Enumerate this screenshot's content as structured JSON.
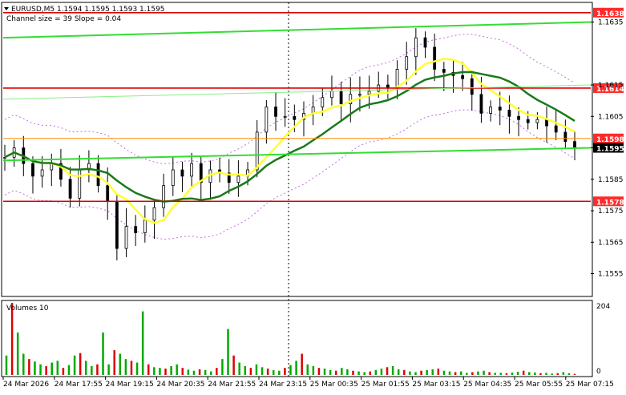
{
  "header": {
    "symbol_line": "EURUSD,M5  1.1594 1.1595 1.1593 1.1595",
    "channel_line": "Channel size = 39 Slope = 0.04"
  },
  "volume_panel": {
    "label": "Volumes 10",
    "max_label": "204",
    "zero_label": "0"
  },
  "colors": {
    "background": "#ffffff",
    "bull_candle": "#000000",
    "volume_up": "#00aa00",
    "volume_down": "#dd0000",
    "resistance_line": "#dd0000",
    "mid_line": "#ff8c00",
    "channel_line": "#33dd33",
    "ma_fast": "#ffff33",
    "ma_slow": "#1a7a1a",
    "envelope": "#c070e0",
    "label_red_bg": "#ff2a2a",
    "label_current_bg": "#000000",
    "grid": "#000000"
  },
  "chart_data": {
    "type": "line",
    "title": "EURUSD,M5",
    "timeframe": "M5",
    "ohlc_header": {
      "open": 1.1594,
      "high": 1.1595,
      "low": 1.1593,
      "close": 1.1595
    },
    "ylim": [
      1.1548,
      1.1641
    ],
    "y_ticks": [
      "1.1635",
      "1.1615",
      "1.1605",
      "1.1595",
      "1.1585",
      "1.1575",
      "1.1565",
      "1.1555"
    ],
    "x_tick_labels": [
      "24 Mar 2026",
      "24 Mar 17:55",
      "24 Mar 19:15",
      "24 Mar 20:35",
      "24 Mar 21:55",
      "24 Mar 23:15",
      "25 Mar 00:35",
      "25 Mar 01:55",
      "25 Mar 03:15",
      "25 Mar 04:35",
      "25 Mar 05:55",
      "25 Mar 07:15"
    ],
    "price_levels": [
      {
        "label": "1.1638",
        "value": 1.1638,
        "kind": "resistance"
      },
      {
        "label": "1.1614",
        "value": 1.1614,
        "kind": "resistance"
      },
      {
        "label": "1.1598",
        "value": 1.1598,
        "kind": "mid"
      },
      {
        "label": "1.1578",
        "value": 1.1578,
        "kind": "support"
      }
    ],
    "current_price_label": "1.1595",
    "channel": {
      "size": 39,
      "slope": 0.04,
      "upper": [
        1.163,
        1.1635
      ],
      "lower": [
        1.1591,
        1.1595
      ]
    },
    "close_series": [
      1.1592,
      1.1595,
      1.159,
      1.1586,
      1.1588,
      1.159,
      1.1585,
      1.1579,
      1.1588,
      1.159,
      1.1583,
      1.1578,
      1.1563,
      1.157,
      1.1568,
      1.1572,
      1.1576,
      1.1583,
      1.1588,
      1.1586,
      1.159,
      1.1584,
      1.1588,
      1.1587,
      1.1584,
      1.1586,
      1.1588,
      1.16,
      1.1608,
      1.1605,
      1.1605,
      1.1604,
      1.1606,
      1.1608,
      1.1611,
      1.1613,
      1.1609,
      1.1612,
      1.1612,
      1.1613,
      1.1615,
      1.1614,
      1.162,
      1.1624,
      1.163,
      1.1627,
      1.162,
      1.1619,
      1.1618,
      1.1617,
      1.1612,
      1.1606,
      1.1608,
      1.1607,
      1.1605,
      1.1604,
      1.1603,
      1.1604,
      1.1602,
      1.16,
      1.1597,
      1.1595
    ],
    "volumes_ylim": [
      0,
      204
    ],
    "volumes": [
      55,
      204,
      120,
      60,
      45,
      38,
      30,
      25,
      35,
      40,
      20,
      28,
      55,
      62,
      40,
      25,
      30,
      120,
      30,
      70,
      60,
      45,
      40,
      35,
      180,
      30,
      22,
      20,
      18,
      25,
      30,
      20,
      15,
      12,
      16,
      14,
      10,
      20,
      45,
      130,
      55,
      35,
      25,
      20,
      30,
      22,
      18,
      14,
      12,
      20,
      28,
      40,
      60,
      30,
      25,
      20,
      18,
      14,
      12,
      20,
      16,
      12,
      10,
      8,
      10,
      14,
      18,
      22,
      25,
      16,
      14,
      10,
      8,
      12,
      14,
      16,
      18,
      12,
      10,
      8,
      10,
      6,
      8,
      10,
      12,
      8,
      6,
      6,
      5,
      7,
      9,
      12,
      8,
      7,
      5,
      6,
      4,
      5,
      8,
      5,
      3
    ]
  }
}
